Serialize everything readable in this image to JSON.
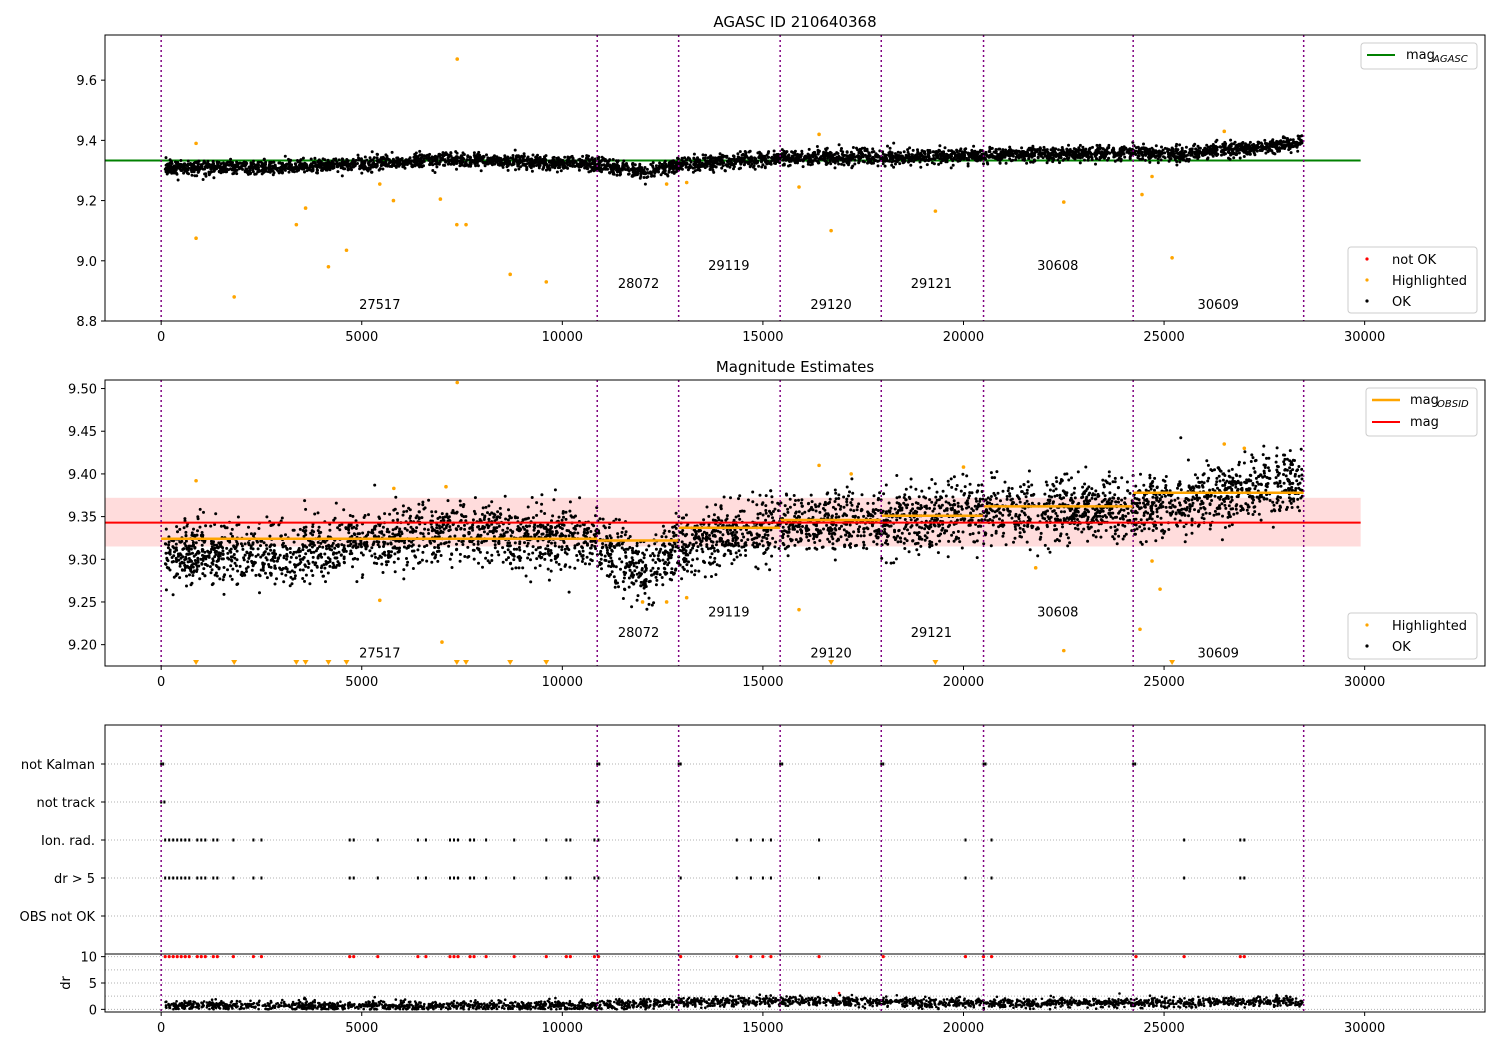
{
  "colors": {
    "ok": "#000000",
    "highlighted": "#ffa500",
    "not_ok": "#ff0000",
    "agasc_line": "#008000",
    "obsid_line": "#ffa500",
    "mag_line": "#ff0000",
    "mag_band": "#ffc0c0",
    "obs_boundary": "#800080",
    "grid": "#b0b0b0"
  },
  "chart_data": [
    {
      "type": "scatter",
      "title": "AGASC ID 210640368",
      "xlim": [
        -1400,
        33000
      ],
      "ylim": [
        8.8,
        9.75
      ],
      "x_ticks": [
        "0",
        "5000",
        "10000",
        "15000",
        "20000",
        "25000",
        "30000"
      ],
      "y_ticks": [
        "8.8",
        "9.0",
        "9.2",
        "9.4",
        "9.6"
      ],
      "legend_top_right": [
        {
          "label": "mag",
          "sub": "AGASC"
        }
      ],
      "legend_bottom_right": [
        "not OK",
        "Highlighted",
        "OK"
      ],
      "mag_agasc": 9.333,
      "obs_boundaries": [
        0,
        10870,
        12900,
        15430,
        17950,
        20500,
        24230,
        28480
      ],
      "obsids": [
        {
          "label": "27517",
          "x": 5450,
          "y": 8.84
        },
        {
          "label": "28072",
          "x": 11900,
          "y": 8.91
        },
        {
          "label": "29119",
          "x": 14150,
          "y": 8.97
        },
        {
          "label": "29120",
          "x": 16700,
          "y": 8.84
        },
        {
          "label": "29121",
          "x": 19200,
          "y": 8.91
        },
        {
          "label": "30608",
          "x": 22350,
          "y": 8.97
        },
        {
          "label": "30609",
          "x": 26350,
          "y": 8.84
        }
      ],
      "ok_trend": [
        [
          100,
          9.31
        ],
        [
          3000,
          9.31
        ],
        [
          7000,
          9.335
        ],
        [
          10870,
          9.32
        ],
        [
          12100,
          9.29
        ],
        [
          12900,
          9.32
        ],
        [
          15430,
          9.34
        ],
        [
          17950,
          9.345
        ],
        [
          20500,
          9.35
        ],
        [
          24230,
          9.36
        ],
        [
          25400,
          9.355
        ],
        [
          28450,
          9.39
        ]
      ],
      "highlighted_points": [
        [
          870,
          9.39
        ],
        [
          870,
          9.075
        ],
        [
          1820,
          8.88
        ],
        [
          3370,
          9.12
        ],
        [
          3600,
          9.175
        ],
        [
          4170,
          8.98
        ],
        [
          4620,
          9.035
        ],
        [
          5450,
          9.255
        ],
        [
          5790,
          9.2
        ],
        [
          6960,
          9.205
        ],
        [
          7370,
          9.12
        ],
        [
          7600,
          9.12
        ],
        [
          7380,
          9.67
        ],
        [
          8700,
          8.955
        ],
        [
          9600,
          8.93
        ],
        [
          12600,
          9.255
        ],
        [
          13100,
          9.26
        ],
        [
          15900,
          9.245
        ],
        [
          16400,
          9.42
        ],
        [
          16700,
          9.1
        ],
        [
          19300,
          9.165
        ],
        [
          22500,
          9.195
        ],
        [
          24450,
          9.22
        ],
        [
          25200,
          9.01
        ],
        [
          24700,
          9.28
        ],
        [
          26500,
          9.43
        ]
      ]
    },
    {
      "type": "scatter",
      "title": "Magnitude Estimates",
      "xlim": [
        -1400,
        33000
      ],
      "ylim": [
        9.175,
        9.51
      ],
      "x_ticks": [
        "0",
        "5000",
        "10000",
        "15000",
        "20000",
        "25000",
        "30000"
      ],
      "y_ticks": [
        "9.20",
        "9.25",
        "9.30",
        "9.35",
        "9.40",
        "9.45",
        "9.50"
      ],
      "legend_top_right": [
        {
          "label": "mag",
          "sub": "OBSID"
        },
        {
          "label": "mag",
          "sub": ""
        }
      ],
      "legend_bottom_right": [
        "Highlighted",
        "OK"
      ],
      "mag": 9.343,
      "mag_band": [
        9.315,
        9.372
      ],
      "mag_obsid": [
        {
          "x": [
            0,
            10870
          ],
          "y": 9.324
        },
        {
          "x": [
            10870,
            12900
          ],
          "y": 9.322
        },
        {
          "x": [
            12900,
            15430
          ],
          "y": 9.337
        },
        {
          "x": [
            15430,
            17950
          ],
          "y": 9.346
        },
        {
          "x": [
            17950,
            20500
          ],
          "y": 9.351
        },
        {
          "x": [
            20500,
            24230
          ],
          "y": 9.362
        },
        {
          "x": [
            24230,
            28480
          ],
          "y": 9.378
        }
      ],
      "obs_boundaries": [
        0,
        10870,
        12900,
        15430,
        17950,
        20500,
        24230,
        28480
      ],
      "obsids": [
        {
          "label": "27517",
          "x": 5450,
          "y": 9.185
        },
        {
          "label": "28072",
          "x": 11900,
          "y": 9.209
        },
        {
          "label": "29119",
          "x": 14150,
          "y": 9.233
        },
        {
          "label": "29120",
          "x": 16700,
          "y": 9.185
        },
        {
          "label": "29121",
          "x": 19200,
          "y": 9.209
        },
        {
          "label": "30608",
          "x": 22350,
          "y": 9.233
        },
        {
          "label": "30609",
          "x": 26350,
          "y": 9.185
        }
      ],
      "ok_trend": [
        [
          100,
          9.305
        ],
        [
          3000,
          9.305
        ],
        [
          7000,
          9.335
        ],
        [
          10870,
          9.32
        ],
        [
          12100,
          9.28
        ],
        [
          12900,
          9.315
        ],
        [
          15430,
          9.34
        ],
        [
          17950,
          9.345
        ],
        [
          20500,
          9.355
        ],
        [
          24230,
          9.36
        ],
        [
          25400,
          9.365
        ],
        [
          28450,
          9.395
        ]
      ],
      "highlighted_points": [
        [
          870,
          9.392
        ],
        [
          5800,
          9.383
        ],
        [
          5450,
          9.252
        ],
        [
          7000,
          9.203
        ],
        [
          7380,
          9.507
        ],
        [
          7100,
          9.385
        ],
        [
          12000,
          9.25
        ],
        [
          12600,
          9.25
        ],
        [
          13100,
          9.255
        ],
        [
          15900,
          9.241
        ],
        [
          16400,
          9.41
        ],
        [
          17200,
          9.4
        ],
        [
          20000,
          9.408
        ],
        [
          21800,
          9.29
        ],
        [
          22500,
          9.193
        ],
        [
          24400,
          9.218
        ],
        [
          24700,
          9.298
        ],
        [
          24900,
          9.265
        ],
        [
          26500,
          9.435
        ],
        [
          27000,
          9.43
        ]
      ],
      "censored_points": [
        870,
        1820,
        3370,
        3600,
        4170,
        4620,
        7370,
        7600,
        8700,
        9600,
        16700,
        19300,
        25200
      ]
    },
    {
      "type": "scatter",
      "title": "",
      "xlim": [
        -1400,
        33000
      ],
      "x_ticks": [
        "0",
        "5000",
        "10000",
        "15000",
        "20000",
        "25000",
        "30000"
      ],
      "flag_rows": [
        "not Kalman",
        "not track",
        "Ion. rad.",
        "dr > 5",
        "OBS not OK"
      ],
      "flags": {
        "not Kalman": [
          0,
          50,
          10870,
          10920,
          12900,
          12950,
          15430,
          15480,
          17950,
          18000,
          20500,
          20550,
          24230,
          24280
        ],
        "not track": [
          0,
          80,
          10870,
          10900
        ],
        "Ion. rad.": [
          100,
          200,
          300,
          400,
          500,
          600,
          700,
          900,
          1000,
          1100,
          1300,
          1400,
          1800,
          2300,
          2500,
          4700,
          4800,
          5400,
          6400,
          6600,
          7200,
          7300,
          7400,
          7700,
          7800,
          8100,
          8800,
          9600,
          10100,
          10200,
          10800,
          10900,
          14350,
          14700,
          15000,
          15200,
          16400,
          20050,
          20700,
          25500,
          26900,
          27000
        ],
        "dr > 5": [
          100,
          200,
          300,
          400,
          500,
          600,
          700,
          900,
          1000,
          1100,
          1300,
          1400,
          1800,
          2300,
          2500,
          4700,
          4800,
          5400,
          6400,
          6600,
          7200,
          7300,
          7400,
          7700,
          7800,
          8100,
          8800,
          9600,
          10100,
          10200,
          10800,
          10900,
          12950,
          14350,
          14700,
          15000,
          15200,
          16400,
          20050,
          20700,
          25500,
          26900,
          27000
        ],
        "OBS not OK": []
      },
      "obs_boundaries": [
        0,
        10870,
        12900,
        15430,
        17950,
        20500,
        24230,
        28480
      ]
    },
    {
      "type": "scatter",
      "title": "",
      "ylabel": "dr",
      "xlim": [
        -1400,
        33000
      ],
      "ylim": [
        -0.5,
        10.5
      ],
      "x_ticks": [
        "0",
        "5000",
        "10000",
        "15000",
        "20000",
        "25000",
        "30000"
      ],
      "y_ticks": [
        "0",
        "5",
        "10"
      ],
      "dr_trend": [
        [
          100,
          0.7
        ],
        [
          10870,
          0.7
        ],
        [
          12900,
          1.3
        ],
        [
          15430,
          1.6
        ],
        [
          17950,
          1.4
        ],
        [
          20500,
          1.2
        ],
        [
          24230,
          1.3
        ],
        [
          28450,
          1.5
        ]
      ],
      "capped_points": [
        100,
        200,
        300,
        400,
        500,
        600,
        700,
        900,
        1000,
        1100,
        1300,
        1400,
        1800,
        2300,
        2500,
        4700,
        4800,
        5400,
        6400,
        6600,
        7200,
        7300,
        7400,
        7700,
        7800,
        8100,
        8800,
        9600,
        10100,
        10200,
        10800,
        10900,
        12950,
        14350,
        14700,
        15000,
        15200,
        16400,
        18000,
        20050,
        20500,
        20700,
        24300,
        25500,
        26900,
        27000
      ],
      "obs_boundaries": [
        0,
        10870,
        12900,
        15430,
        17950,
        20500,
        24230,
        28480
      ]
    }
  ]
}
